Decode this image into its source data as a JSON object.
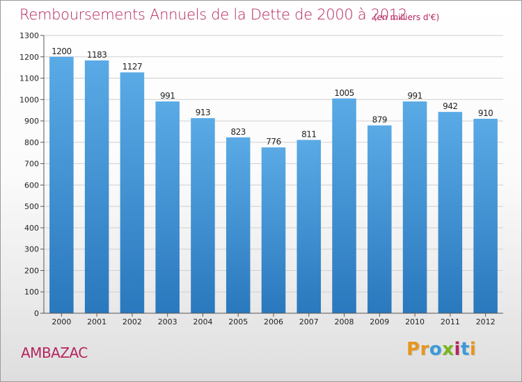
{
  "chart_data": {
    "type": "bar",
    "title": "Remboursements Annuels de la Dette de 2000 à 2012",
    "subtitle": "(en milliers d'€)",
    "categories": [
      "2000",
      "2001",
      "2002",
      "2003",
      "2004",
      "2005",
      "2006",
      "2007",
      "2008",
      "2009",
      "2010",
      "2011",
      "2012"
    ],
    "values": [
      1200,
      1183,
      1127,
      991,
      913,
      823,
      776,
      811,
      1005,
      879,
      991,
      942,
      910
    ],
    "ylim": [
      0,
      1300
    ],
    "yticks": [
      0,
      100,
      200,
      300,
      400,
      500,
      600,
      700,
      800,
      900,
      1000,
      1100,
      1200,
      1300
    ],
    "grid": true,
    "legend": "none",
    "colors": {
      "bar_top": "#5aaae6",
      "bar_bottom": "#2a78bd",
      "grid": "#cfcfcf",
      "axis": "#555555",
      "text": "#222222"
    }
  },
  "footer": {
    "commune": "AMBAZAC",
    "logo_letters": [
      {
        "char": "P",
        "color": "#e8951c"
      },
      {
        "char": "r",
        "color": "#e8951c"
      },
      {
        "char": "o",
        "color": "#3b9ad9"
      },
      {
        "char": "x",
        "color": "#7ab51d"
      },
      {
        "char": "i",
        "color": "#b5245e"
      },
      {
        "char": "t",
        "color": "#3b9ad9"
      },
      {
        "char": "i",
        "color": "#e8951c"
      }
    ]
  }
}
